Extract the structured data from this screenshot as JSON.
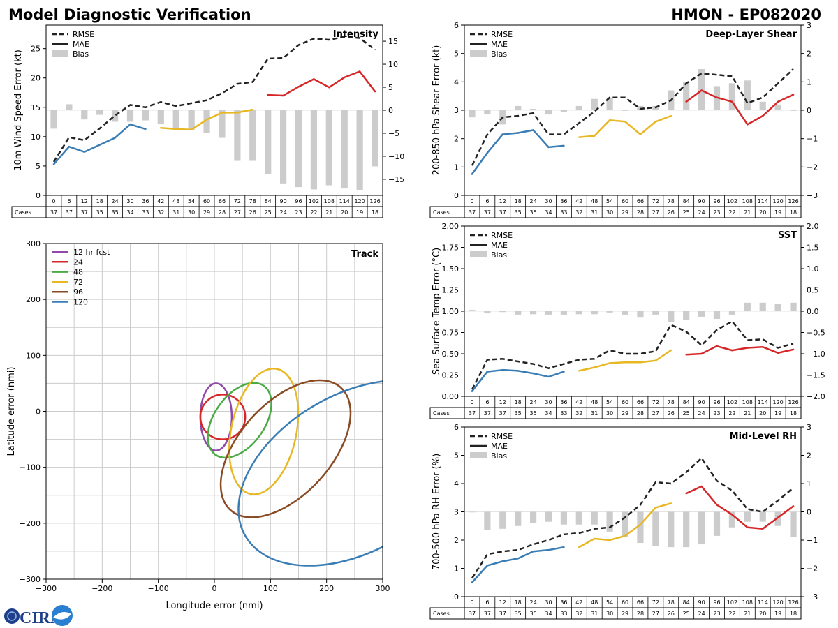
{
  "header": {
    "left_title": "Model Diagnostic Verification",
    "right_title": "HMON - EP082020"
  },
  "legend": {
    "rmse": "RMSE",
    "mae": "MAE",
    "bias": "Bias"
  },
  "cases_label": "Cases",
  "colors": {
    "rmse": "#222222",
    "bias": "#cccccc",
    "grid": "#cccccc",
    "mae_blue": "#3a7db5",
    "mae_yellow": "#e8b824",
    "mae_red": "#d62728",
    "track_12": "#8e4aa6",
    "track_24": "#d62728",
    "track_48": "#4aaa44",
    "track_72": "#e8b824",
    "track_96": "#8a4a24",
    "track_120": "#3a7db5"
  },
  "logo": {
    "text": "CIRA",
    "icon": "noaa-logo-icon"
  },
  "chart_data": [
    {
      "id": "intensity",
      "type": "line",
      "title": "Intensity",
      "ylabel": "10m Wind Speed Error (kt)",
      "ylim": [
        0,
        29
      ],
      "yticks": [
        0,
        5,
        10,
        15,
        20,
        25
      ],
      "y2lim": [
        -18.5,
        18.5
      ],
      "y2ticks": [
        -15,
        -10,
        -5,
        0,
        5,
        10,
        15
      ],
      "y2ticklabels": [
        "−15",
        "−10",
        "−5",
        "0",
        "5",
        "10",
        "15"
      ],
      "hours": [
        0,
        6,
        12,
        18,
        24,
        30,
        36,
        42,
        48,
        54,
        60,
        66,
        72,
        78,
        84,
        90,
        96,
        102,
        108,
        114,
        120,
        126
      ],
      "cases": [
        37,
        37,
        37,
        35,
        35,
        34,
        33,
        32,
        31,
        30,
        29,
        28,
        27,
        26,
        25,
        24,
        23,
        22,
        21,
        20,
        19,
        18
      ],
      "rmse": [
        5.7,
        9.9,
        9.4,
        11.4,
        13.6,
        15.4,
        15.0,
        15.9,
        15.2,
        15.7,
        16.2,
        17.4,
        19.0,
        19.3,
        23.3,
        23.4,
        25.6,
        26.7,
        26.5,
        27.0,
        26.8,
        24.8
      ],
      "mae": [
        5.3,
        8.3,
        7.4,
        8.6,
        9.8,
        12.1,
        11.3,
        11.5,
        11.3,
        11.2,
        12.9,
        14.1,
        14.1,
        14.6,
        17.1,
        17.0,
        18.5,
        19.8,
        18.4,
        20.1,
        21.1,
        17.7
      ],
      "bias": [
        -4.0,
        1.3,
        -2.0,
        -1.0,
        -2.5,
        -2.5,
        -2.2,
        -3.0,
        -4.3,
        -4.3,
        -5.0,
        -6.0,
        -11.0,
        -11.0,
        -13.8,
        -15.9,
        -16.7,
        -17.2,
        -16.3,
        -17.0,
        -17.4,
        -12.2
      ]
    },
    {
      "id": "shear",
      "type": "line",
      "title": "Deep-Layer Shear",
      "ylabel": "200-850 hPa Shear Error (kt)",
      "ylim": [
        0,
        6
      ],
      "yticks": [
        0,
        1,
        2,
        3,
        4,
        5,
        6
      ],
      "y2lim": [
        -3,
        3
      ],
      "y2ticks": [
        -3,
        -2,
        -1,
        0,
        1,
        2,
        3
      ],
      "y2ticklabels": [
        "−3",
        "−2",
        "−1",
        "0",
        "1",
        "2",
        "3"
      ],
      "hours": [
        0,
        6,
        12,
        18,
        24,
        30,
        36,
        42,
        48,
        54,
        60,
        66,
        72,
        78,
        84,
        90,
        96,
        102,
        108,
        114,
        120,
        126
      ],
      "cases": [
        37,
        37,
        37,
        35,
        35,
        34,
        33,
        32,
        31,
        30,
        29,
        28,
        27,
        26,
        25,
        24,
        23,
        22,
        21,
        20,
        19,
        18
      ],
      "rmse": [
        1.05,
        2.15,
        2.75,
        2.8,
        2.9,
        2.15,
        2.15,
        2.55,
        2.95,
        3.45,
        3.45,
        3.05,
        3.1,
        3.35,
        3.95,
        4.3,
        4.25,
        4.2,
        3.25,
        3.45,
        3.95,
        4.45
      ],
      "mae": [
        0.75,
        1.5,
        2.15,
        2.2,
        2.3,
        1.7,
        1.75,
        2.05,
        2.1,
        2.65,
        2.6,
        2.15,
        2.6,
        2.8,
        3.3,
        3.7,
        3.45,
        3.3,
        2.5,
        2.8,
        3.3,
        3.55
      ],
      "bias": [
        -0.25,
        -0.15,
        -0.5,
        0.15,
        0.05,
        -0.15,
        -0.05,
        0.15,
        0.4,
        0.45,
        0.0,
        0.15,
        0.15,
        0.7,
        1.0,
        1.45,
        0.85,
        0.95,
        1.05,
        0.3,
        0.2,
        0.0
      ]
    },
    {
      "id": "sst",
      "type": "line",
      "title": "SST",
      "ylabel": "Sea Surface Temp Error (°C)",
      "ylim": [
        0,
        2
      ],
      "yticks": [
        0,
        0.25,
        0.5,
        0.75,
        1.0,
        1.25,
        1.5,
        1.75,
        2.0
      ],
      "yticklabels": [
        "0.00",
        "0.25",
        "0.50",
        "0.75",
        "1.00",
        "1.25",
        "1.50",
        "1.75",
        "2.00"
      ],
      "y2lim": [
        -2,
        2
      ],
      "y2ticks": [
        -2,
        -1.5,
        -1,
        -0.5,
        0,
        0.5,
        1,
        1.5,
        2
      ],
      "y2ticklabels": [
        "−2.0",
        "−1.5",
        "−1.0",
        "−0.5",
        "0.0",
        "0.5",
        "1.0",
        "1.5",
        "2.0"
      ],
      "hours": [
        0,
        6,
        12,
        18,
        24,
        30,
        36,
        42,
        48,
        54,
        60,
        66,
        72,
        78,
        84,
        90,
        96,
        102,
        108,
        114,
        120,
        126
      ],
      "cases": [
        37,
        37,
        37,
        35,
        35,
        34,
        33,
        32,
        31,
        30,
        29,
        28,
        27,
        26,
        25,
        24,
        23,
        22,
        21,
        20,
        19,
        18
      ],
      "rmse": [
        0.08,
        0.43,
        0.44,
        0.41,
        0.38,
        0.33,
        0.38,
        0.43,
        0.44,
        0.54,
        0.5,
        0.5,
        0.53,
        0.84,
        0.76,
        0.6,
        0.78,
        0.88,
        0.66,
        0.67,
        0.57,
        0.62
      ],
      "mae": [
        0.06,
        0.29,
        0.31,
        0.3,
        0.27,
        0.23,
        0.29,
        0.3,
        0.34,
        0.39,
        0.4,
        0.4,
        0.42,
        0.54,
        0.49,
        0.5,
        0.59,
        0.54,
        0.57,
        0.58,
        0.51,
        0.55
      ],
      "bias": [
        0.03,
        -0.05,
        -0.02,
        -0.08,
        -0.07,
        -0.08,
        -0.08,
        -0.07,
        -0.07,
        -0.03,
        -0.08,
        -0.15,
        -0.08,
        -0.25,
        -0.2,
        -0.13,
        -0.18,
        -0.08,
        0.2,
        0.2,
        0.17,
        0.2
      ]
    },
    {
      "id": "rh",
      "type": "line",
      "title": "Mid-Level RH",
      "ylabel": "700-500 hPa RH Error (%)",
      "ylim": [
        0,
        6
      ],
      "yticks": [
        0,
        1,
        2,
        3,
        4,
        5,
        6
      ],
      "y2lim": [
        -3,
        3
      ],
      "y2ticks": [
        -3,
        -2,
        -1,
        0,
        1,
        2,
        3
      ],
      "y2ticklabels": [
        "−3",
        "−2",
        "−1",
        "0",
        "1",
        "2",
        "3"
      ],
      "hours": [
        0,
        6,
        12,
        18,
        24,
        30,
        36,
        42,
        48,
        54,
        60,
        66,
        72,
        78,
        84,
        90,
        96,
        102,
        108,
        114,
        120,
        126
      ],
      "cases": [
        37,
        37,
        37,
        35,
        35,
        34,
        33,
        32,
        31,
        30,
        29,
        28,
        27,
        26,
        25,
        24,
        23,
        22,
        21,
        20,
        19,
        18
      ],
      "rmse": [
        0.65,
        1.5,
        1.6,
        1.65,
        1.85,
        2.0,
        2.2,
        2.25,
        2.4,
        2.45,
        2.8,
        3.25,
        4.05,
        4.0,
        4.4,
        4.9,
        4.1,
        3.75,
        3.1,
        3.0,
        3.4,
        3.85
      ],
      "mae": [
        0.5,
        1.1,
        1.25,
        1.35,
        1.6,
        1.65,
        1.75,
        1.75,
        2.05,
        2.0,
        2.15,
        2.55,
        3.15,
        3.3,
        3.65,
        3.9,
        3.25,
        2.9,
        2.45,
        2.4,
        2.8,
        3.2
      ],
      "bias": [
        0.0,
        -0.65,
        -0.6,
        -0.5,
        -0.4,
        -0.35,
        -0.45,
        -0.45,
        -0.45,
        -0.7,
        -0.9,
        -1.1,
        -1.2,
        -1.25,
        -1.25,
        -1.15,
        -0.85,
        -0.55,
        -0.35,
        -0.35,
        -0.5,
        -0.9
      ]
    },
    {
      "id": "track",
      "type": "scatter",
      "title": "Track",
      "xlabel": "Longitude error (nmi)",
      "ylabel": "Latitude error (nmi)",
      "xlim": [
        -300,
        300
      ],
      "ylim": [
        -300,
        300
      ],
      "ticks": [
        -300,
        -200,
        -100,
        0,
        100,
        200,
        300
      ],
      "ticklabels": [
        "−300",
        "−200",
        "−100",
        "0",
        "100",
        "200",
        "300"
      ],
      "grid_step": 50,
      "legend": [
        "12 hr fcst",
        "24",
        "48",
        "72",
        "96",
        "120"
      ],
      "ellipses": [
        {
          "name": "12 hr fcst",
          "color_key": "track_12",
          "cx": 3,
          "cy": -10,
          "rx": 28,
          "ry": 60,
          "rot": 0
        },
        {
          "name": "24",
          "color_key": "track_24",
          "cx": 15,
          "cy": -10,
          "rx": 40,
          "ry": 40,
          "rot": 0
        },
        {
          "name": "48",
          "color_key": "track_48",
          "cx": 45,
          "cy": -16,
          "rx": 45,
          "ry": 75,
          "rot": 35
        },
        {
          "name": "72",
          "color_key": "track_72",
          "cx": 88,
          "cy": -36,
          "rx": 58,
          "ry": 114,
          "rot": 12
        },
        {
          "name": "96",
          "color_key": "track_96",
          "cx": 127,
          "cy": -67,
          "rx": 82,
          "ry": 147,
          "rot": 42
        },
        {
          "name": "120",
          "color_key": "track_120",
          "cx": 250,
          "cy": -110,
          "rx": 140,
          "ry": 225,
          "rot": 60
        }
      ]
    }
  ]
}
